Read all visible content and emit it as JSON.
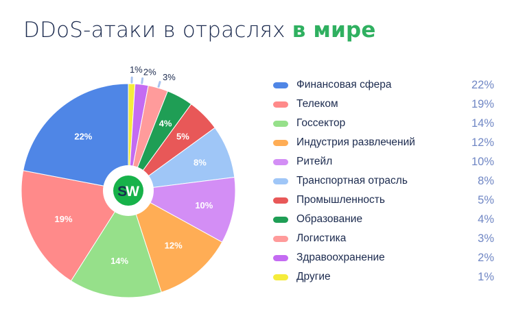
{
  "title": {
    "main": "DDoS-атаки в отраслях",
    "accent": "в мире"
  },
  "logo": {
    "text": "SW",
    "color": "#17b24a"
  },
  "chart_data": {
    "type": "pie",
    "title": "DDoS-атаки в отраслях в мире",
    "categories": [
      "Финансовая сфера",
      "Телеком",
      "Госсектор",
      "Индустрия развлечений",
      "Ритейл",
      "Транспортная отрасль",
      "Промышленность",
      "Образование",
      "Логистика",
      "Здравоохранение",
      "Другие"
    ],
    "values": [
      22,
      19,
      14,
      12,
      10,
      8,
      5,
      4,
      3,
      2,
      1
    ],
    "unit": "%",
    "colors": [
      "#4f86e6",
      "#ff8a8a",
      "#96e08a",
      "#ffad55",
      "#d38ef5",
      "#9fc6f7",
      "#e85858",
      "#1f9e55",
      "#ff9b9b",
      "#c46bf2",
      "#f5ec3b"
    ],
    "legend_position": "right",
    "donut_hole": true
  },
  "legend": [
    {
      "label": "Финансовая сфера",
      "value": "22%",
      "color": "#4f86e6"
    },
    {
      "label": "Телеком",
      "value": "19%",
      "color": "#ff8a8a"
    },
    {
      "label": "Госсектор",
      "value": "14%",
      "color": "#96e08a"
    },
    {
      "label": "Индустрия развлечений",
      "value": "12%",
      "color": "#ffad55"
    },
    {
      "label": "Ритейл",
      "value": "10%",
      "color": "#d38ef5"
    },
    {
      "label": "Транспортная отрасль",
      "value": "8%",
      "color": "#9fc6f7"
    },
    {
      "label": "Промышленность",
      "value": "5%",
      "color": "#e85858"
    },
    {
      "label": "Образование",
      "value": "4%",
      "color": "#1f9e55"
    },
    {
      "label": "Логистика",
      "value": "3%",
      "color": "#ff9b9b"
    },
    {
      "label": "Здравоохранение",
      "value": "2%",
      "color": "#c46bf2"
    },
    {
      "label": "Другие",
      "value": "1%",
      "color": "#f5ec3b"
    }
  ]
}
